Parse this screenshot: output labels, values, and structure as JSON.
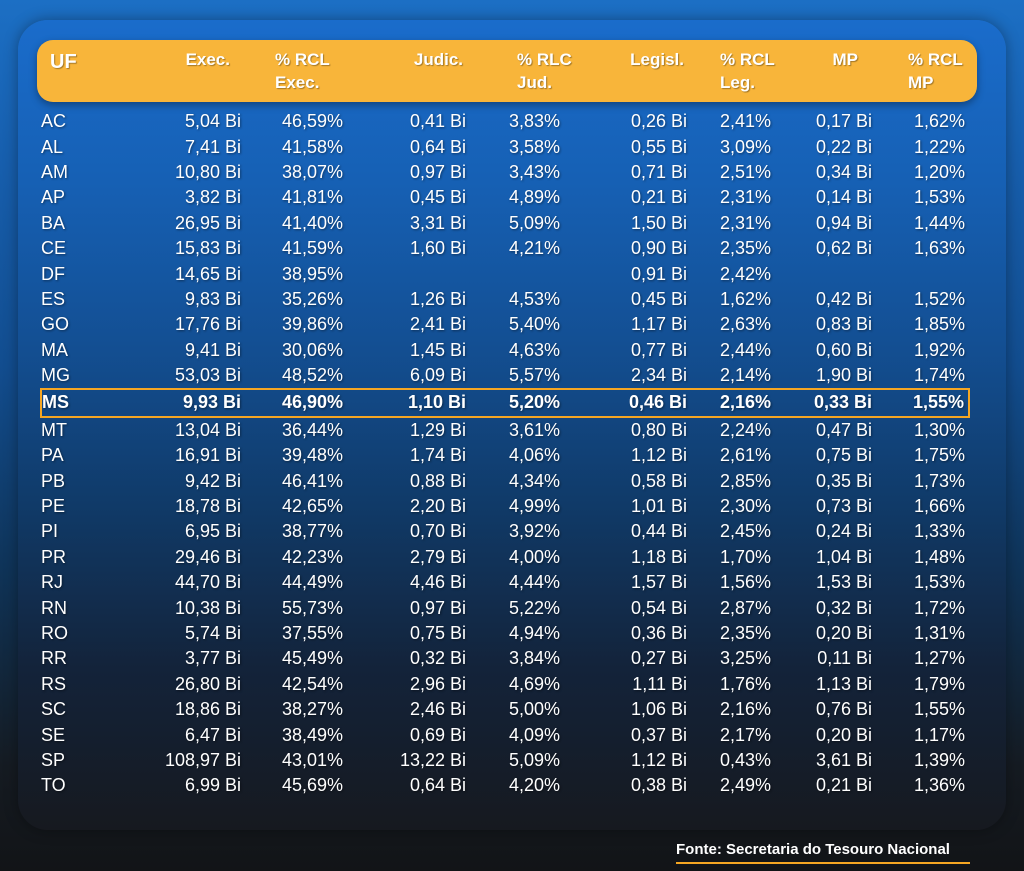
{
  "chart_data": {
    "type": "table",
    "columns": [
      "UF",
      "Exec.",
      "% RCL Exec.",
      "Judic.",
      "% RLC Jud.",
      "Legisl.",
      "% RCL Leg.",
      "MP",
      "% RCL MP"
    ],
    "header": {
      "uf": "UF",
      "exec": "Exec.",
      "rcl_exec": [
        "% RCL",
        "Exec."
      ],
      "judic": "Judic.",
      "rlc_jud": [
        "% RLC",
        "Jud."
      ],
      "legisl": "Legisl.",
      "rcl_leg": [
        "% RCL",
        "Leg."
      ],
      "mp": "MP",
      "rcl_mp": [
        "% RCL",
        "MP"
      ]
    },
    "highlighted_row": "MS",
    "rows": [
      [
        "AC",
        "5,04 Bi",
        "46,59%",
        "0,41 Bi",
        "3,83%",
        "0,26 Bi",
        "2,41%",
        "0,17 Bi",
        "1,62%"
      ],
      [
        "AL",
        "7,41 Bi",
        "41,58%",
        "0,64 Bi",
        "3,58%",
        "0,55 Bi",
        "3,09%",
        "0,22 Bi",
        "1,22%"
      ],
      [
        "AM",
        "10,80 Bi",
        "38,07%",
        "0,97 Bi",
        "3,43%",
        "0,71 Bi",
        "2,51%",
        "0,34 Bi",
        "1,20%"
      ],
      [
        "AP",
        "3,82 Bi",
        "41,81%",
        "0,45 Bi",
        "4,89%",
        "0,21 Bi",
        "2,31%",
        "0,14 Bi",
        "1,53%"
      ],
      [
        "BA",
        "26,95 Bi",
        "41,40%",
        "3,31 Bi",
        "5,09%",
        "1,50 Bi",
        "2,31%",
        "0,94 Bi",
        "1,44%"
      ],
      [
        "CE",
        "15,83 Bi",
        "41,59%",
        "1,60 Bi",
        "4,21%",
        "0,90 Bi",
        "2,35%",
        "0,62 Bi",
        "1,63%"
      ],
      [
        "DF",
        "14,65 Bi",
        "38,95%",
        "",
        "",
        "0,91 Bi",
        "2,42%",
        "",
        ""
      ],
      [
        "ES",
        "9,83 Bi",
        "35,26%",
        "1,26 Bi",
        "4,53%",
        "0,45 Bi",
        "1,62%",
        "0,42 Bi",
        "1,52%"
      ],
      [
        "GO",
        "17,76 Bi",
        "39,86%",
        "2,41 Bi",
        "5,40%",
        "1,17 Bi",
        "2,63%",
        "0,83 Bi",
        "1,85%"
      ],
      [
        "MA",
        "9,41 Bi",
        "30,06%",
        "1,45 Bi",
        "4,63%",
        "0,77 Bi",
        "2,44%",
        "0,60 Bi",
        "1,92%"
      ],
      [
        "MG",
        "53,03 Bi",
        "48,52%",
        "6,09 Bi",
        "5,57%",
        "2,34 Bi",
        "2,14%",
        "1,90 Bi",
        "1,74%"
      ],
      [
        "MS",
        "9,93 Bi",
        "46,90%",
        "1,10 Bi",
        "5,20%",
        "0,46 Bi",
        "2,16%",
        "0,33 Bi",
        "1,55%"
      ],
      [
        "MT",
        "13,04 Bi",
        "36,44%",
        "1,29 Bi",
        "3,61%",
        "0,80 Bi",
        "2,24%",
        "0,47 Bi",
        "1,30%"
      ],
      [
        "PA",
        "16,91 Bi",
        "39,48%",
        "1,74 Bi",
        "4,06%",
        "1,12 Bi",
        "2,61%",
        "0,75 Bi",
        "1,75%"
      ],
      [
        "PB",
        "9,42 Bi",
        "46,41%",
        "0,88 Bi",
        "4,34%",
        "0,58 Bi",
        "2,85%",
        "0,35 Bi",
        "1,73%"
      ],
      [
        "PE",
        "18,78 Bi",
        "42,65%",
        "2,20 Bi",
        "4,99%",
        "1,01 Bi",
        "2,30%",
        "0,73 Bi",
        "1,66%"
      ],
      [
        "PI",
        "6,95 Bi",
        "38,77%",
        "0,70 Bi",
        "3,92%",
        "0,44 Bi",
        "2,45%",
        "0,24 Bi",
        "1,33%"
      ],
      [
        "PR",
        "29,46 Bi",
        "42,23%",
        "2,79 Bi",
        "4,00%",
        "1,18 Bi",
        "1,70%",
        "1,04 Bi",
        "1,48%"
      ],
      [
        "RJ",
        "44,70 Bi",
        "44,49%",
        "4,46 Bi",
        "4,44%",
        "1,57 Bi",
        "1,56%",
        "1,53 Bi",
        "1,53%"
      ],
      [
        "RN",
        "10,38 Bi",
        "55,73%",
        "0,97 Bi",
        "5,22%",
        "0,54 Bi",
        "2,87%",
        "0,32 Bi",
        "1,72%"
      ],
      [
        "RO",
        "5,74 Bi",
        "37,55%",
        "0,75 Bi",
        "4,94%",
        "0,36 Bi",
        "2,35%",
        "0,20 Bi",
        "1,31%"
      ],
      [
        "RR",
        "3,77 Bi",
        "45,49%",
        "0,32 Bi",
        "3,84%",
        "0,27 Bi",
        "3,25%",
        "0,11 Bi",
        "1,27%"
      ],
      [
        "RS",
        "26,80 Bi",
        "42,54%",
        "2,96 Bi",
        "4,69%",
        "1,11 Bi",
        "1,76%",
        "1,13 Bi",
        "1,79%"
      ],
      [
        "SC",
        "18,86 Bi",
        "38,27%",
        "2,46 Bi",
        "5,00%",
        "1,06 Bi",
        "2,16%",
        "0,76 Bi",
        "1,55%"
      ],
      [
        "SE",
        "6,47 Bi",
        "38,49%",
        "0,69 Bi",
        "4,09%",
        "0,37 Bi",
        "2,17%",
        "0,20 Bi",
        "1,17%"
      ],
      [
        "SP",
        "108,97 Bi",
        "43,01%",
        "13,22 Bi",
        "5,09%",
        "1,12 Bi",
        "0,43%",
        "3,61 Bi",
        "1,39%"
      ],
      [
        "TO",
        "6,99 Bi",
        "45,69%",
        "0,64 Bi",
        "4,20%",
        "0,38 Bi",
        "2,49%",
        "0,21 Bi",
        "1,36%"
      ]
    ],
    "source": "Fonte: Secretaria do Tesouro Nacional"
  },
  "colors": {
    "accent": "#f8b53a",
    "highlight_border": "#f5a623",
    "text": "#ffffff",
    "background_top": "#1c6fc4",
    "background_bottom": "#121417"
  }
}
